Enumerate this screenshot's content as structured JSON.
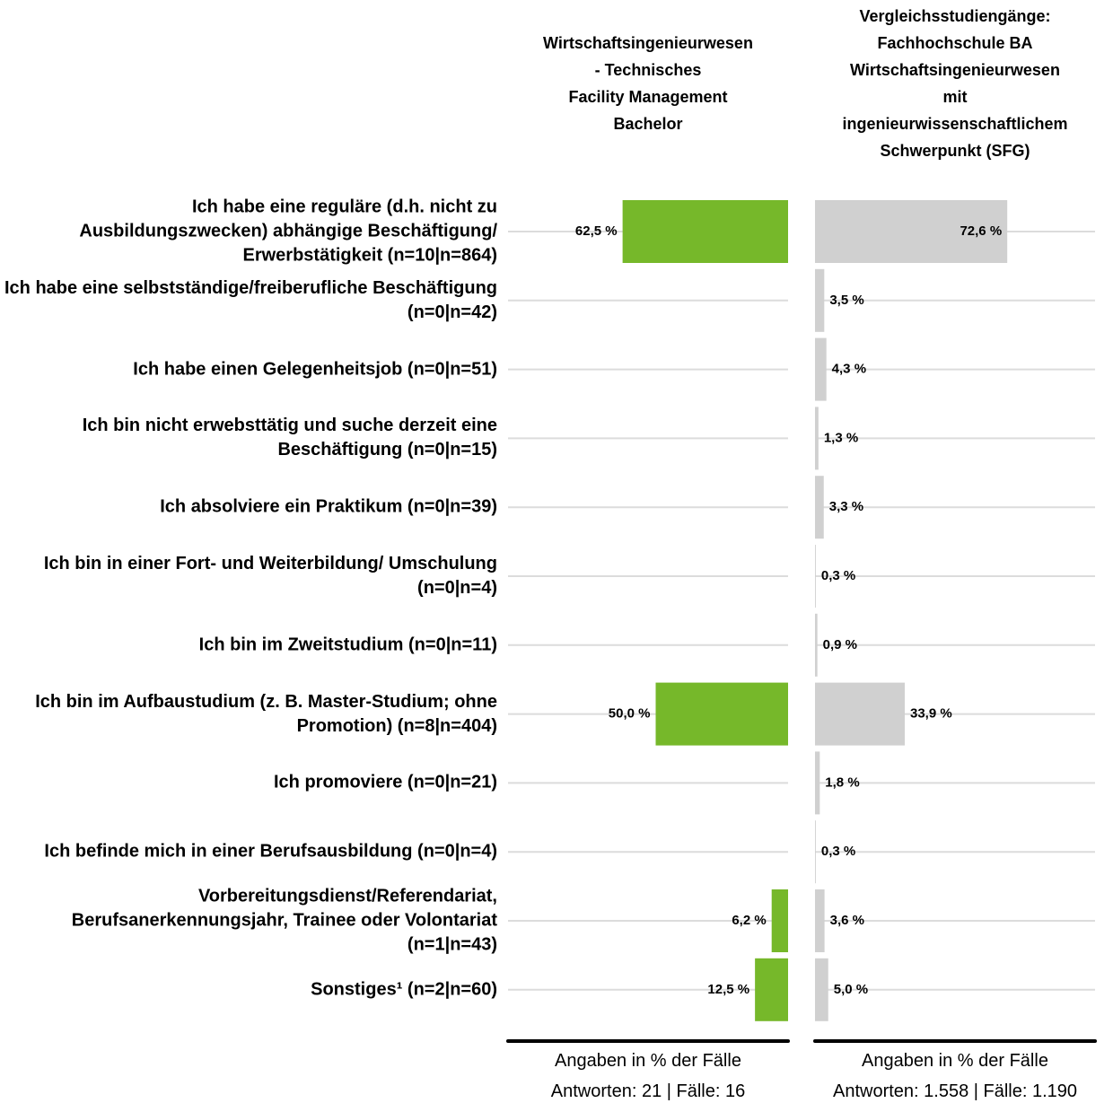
{
  "chart_data": {
    "type": "bar",
    "categories": [
      "Ich habe eine reguläre (d.h. nicht zu Ausbildungszwecken) abhängige Beschäftigung/ Erwerbstätigkeit (n=10|n=864)",
      "Ich habe eine selbstständige/freiberufliche Beschäftigung (n=0|n=42)",
      "Ich habe einen Gelegenheitsjob (n=0|n=51)",
      "Ich bin nicht erwebsttätig und suche derzeit eine Beschäftigung (n=0|n=15)",
      "Ich absolviere ein Praktikum (n=0|n=39)",
      "Ich bin in einer Fort- und Weiterbildung/ Umschulung (n=0|n=4)",
      "Ich bin im Zweitstudium (n=0|n=11)",
      "Ich bin im Aufbaustudium (z. B. Master-Studium; ohne Promotion) (n=8|n=404)",
      "Ich promoviere (n=0|n=21)",
      "Ich befinde mich in einer Berufsausbildung (n=0|n=4)",
      "Vorbereitungsdienst/Referendariat, Berufsanerkennungsjahr, Trainee oder Volontariat (n=1|n=43)",
      "Sonstiges¹ (n=2|n=60)"
    ],
    "xlim": [
      0,
      100
    ],
    "series": [
      {
        "name": "Wirtschaftsingenieurwesen\n- Technisches\nFacility Management\nBachelor",
        "color": "#76b82a",
        "direction": "left",
        "values": [
          62.5,
          null,
          null,
          null,
          null,
          null,
          null,
          50.0,
          null,
          null,
          6.2,
          12.5
        ],
        "value_labels": [
          "62,5 %",
          null,
          null,
          null,
          null,
          null,
          null,
          "50,0 %",
          null,
          null,
          "6,2 %",
          "12,5 %"
        ],
        "footnote": [
          "Angaben in % der Fälle",
          "Antworten: 21 | Fälle: 16"
        ]
      },
      {
        "name": "Vergleichsstudiengänge:\nFachhochschule BA\nWirtschaftsingenieurwesen\nmit\ningenieurwissenschaftlichem\nSchwerpunkt (SFG)",
        "color": "#d0d0d0",
        "direction": "right",
        "values": [
          72.6,
          3.5,
          4.3,
          1.3,
          3.3,
          0.3,
          0.9,
          33.9,
          1.8,
          0.3,
          3.6,
          5.0
        ],
        "value_labels": [
          "72,6 %",
          "3,5 %",
          "4,3 %",
          "1,3 %",
          "3,3 %",
          "0,3 %",
          "0,9 %",
          "33,9 %",
          "1,8 %",
          "0,3 %",
          "3,6 %",
          "5,0 %"
        ],
        "footnote": [
          "Angaben in % der Fälle",
          "Antworten: 1.558 | Fälle: 1.190"
        ]
      }
    ]
  }
}
